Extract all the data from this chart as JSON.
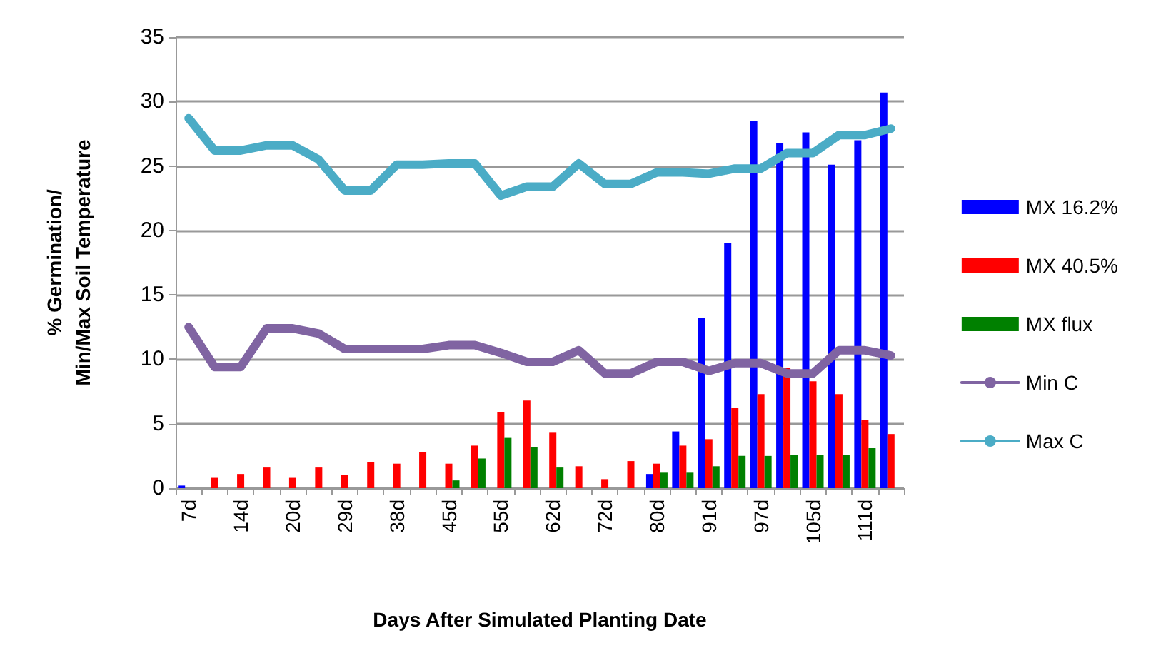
{
  "chart_data": {
    "type": "bar",
    "xlabel": "Days After Simulated Planting Date",
    "ylabel": "% Germination/\nMin/Max Soil Temperature",
    "categories": [
      "7d",
      null,
      "14d",
      null,
      "20d",
      null,
      "29d",
      null,
      "38d",
      null,
      "45d",
      null,
      "55d",
      null,
      "62d",
      null,
      "72d",
      null,
      "80d",
      null,
      "91d",
      null,
      "97d",
      null,
      "105d",
      null,
      "111d",
      null
    ],
    "series": [
      {
        "name": "MX 16.2%",
        "color": "#0000ff",
        "values": [
          0.2,
          null,
          null,
          null,
          null,
          null,
          null,
          null,
          null,
          null,
          null,
          null,
          null,
          null,
          null,
          null,
          null,
          null,
          1.1,
          4.4,
          13.2,
          19.0,
          28.5,
          26.8,
          27.6,
          25.1,
          27.0,
          30.7
        ]
      },
      {
        "name": "MX 40.5%",
        "color": "#ff0000",
        "values": [
          null,
          0.8,
          1.1,
          1.6,
          0.8,
          1.6,
          1.0,
          2.0,
          1.9,
          2.8,
          1.9,
          3.3,
          5.9,
          6.8,
          4.3,
          1.7,
          0.7,
          2.1,
          1.9,
          3.3,
          3.8,
          6.2,
          7.3,
          9.3,
          8.3,
          7.3,
          5.3,
          4.2
        ]
      },
      {
        "name": "MX flux",
        "color": "#008000",
        "values": [
          null,
          null,
          null,
          null,
          null,
          null,
          null,
          null,
          null,
          null,
          0.6,
          2.3,
          3.9,
          3.2,
          1.6,
          null,
          null,
          null,
          1.2,
          1.2,
          1.7,
          2.5,
          2.5,
          2.6,
          2.6,
          2.6,
          3.1,
          null
        ]
      },
      {
        "name": "Min C",
        "type": "line",
        "color": "#8064a2",
        "values": [
          12.5,
          9.4,
          9.4,
          12.4,
          12.4,
          12.0,
          10.8,
          10.8,
          10.8,
          10.8,
          11.1,
          11.1,
          10.5,
          9.8,
          9.8,
          10.7,
          8.9,
          8.9,
          9.8,
          9.8,
          9.1,
          9.7,
          9.7,
          8.9,
          8.9,
          10.7,
          10.7,
          10.3
        ]
      },
      {
        "name": "Max C",
        "type": "line",
        "color": "#4bacc6",
        "values": [
          28.7,
          26.2,
          26.2,
          26.6,
          26.6,
          25.5,
          23.1,
          23.1,
          25.1,
          25.1,
          25.2,
          25.2,
          22.7,
          23.4,
          23.4,
          25.2,
          23.6,
          23.6,
          24.5,
          24.5,
          24.4,
          24.8,
          24.8,
          26.0,
          26.0,
          27.4,
          27.4,
          27.9
        ]
      }
    ],
    "ylim": [
      0,
      35
    ],
    "yticks": [
      0,
      5,
      10,
      15,
      20,
      25,
      30,
      35
    ],
    "grid": "y",
    "legend": "right",
    "marker": "none",
    "line_style": "solid"
  }
}
